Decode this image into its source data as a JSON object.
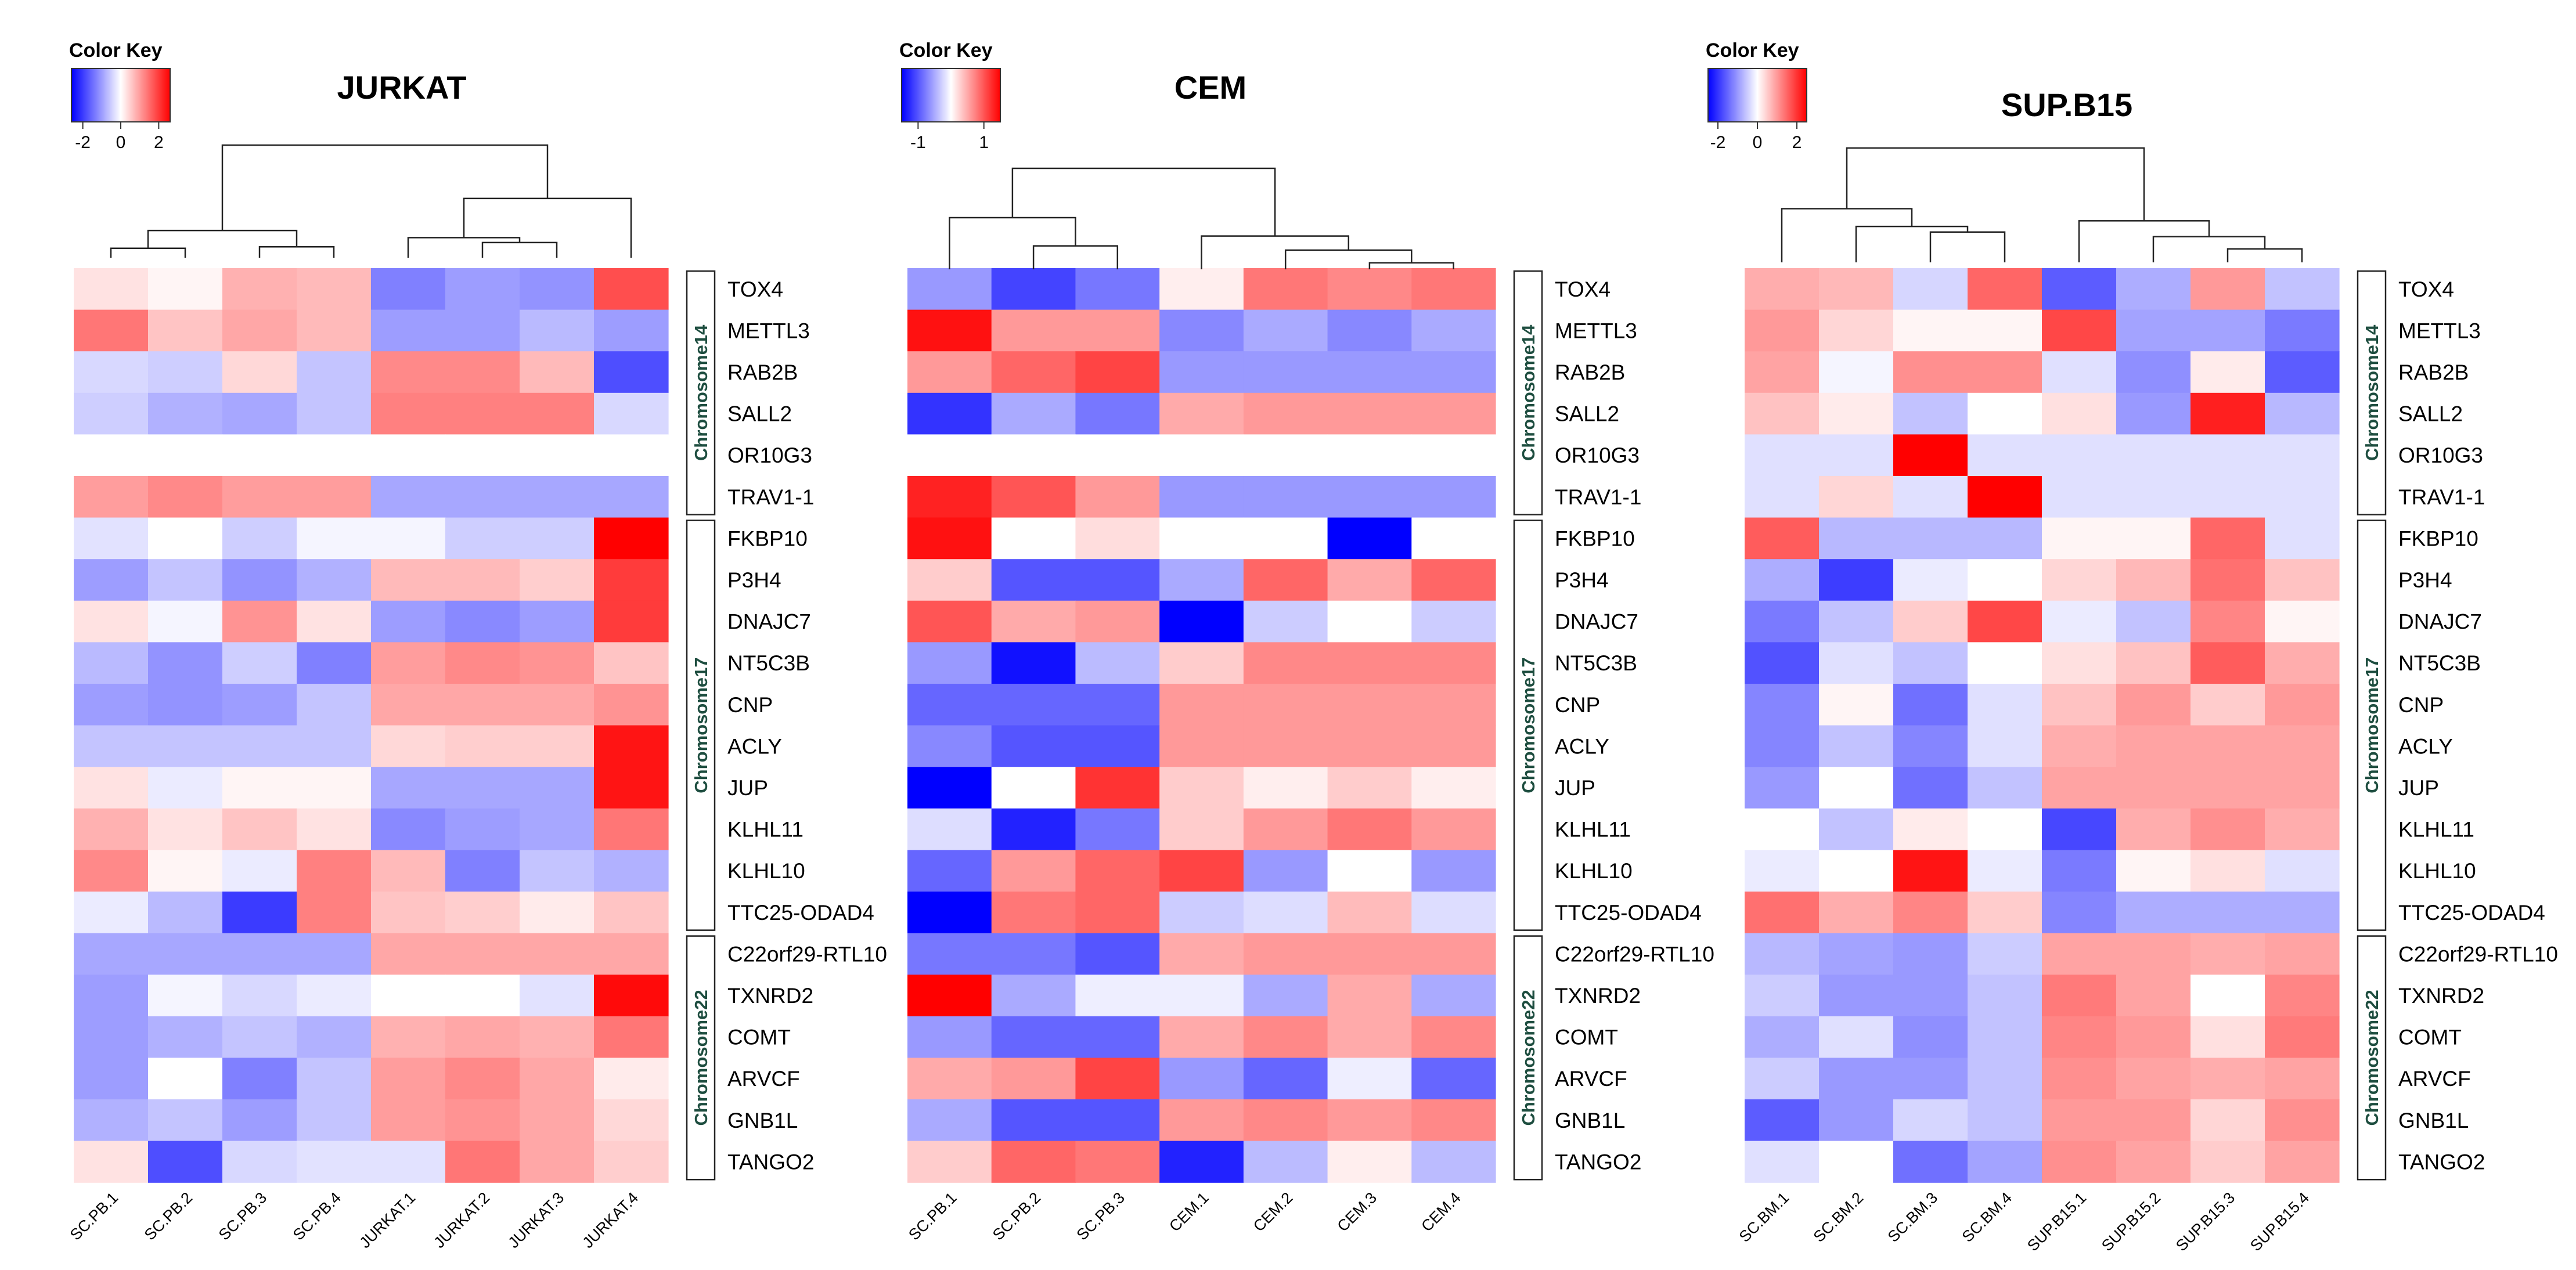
{
  "color_key_title": "Color Key",
  "colors": {
    "low": "#0000ff",
    "mid": "#ffffff",
    "high": "#ff0000",
    "missing": "#ffffff"
  },
  "genes": [
    "TOX4",
    "METTL3",
    "RAB2B",
    "SALL2",
    "OR10G3",
    "TRAV1-1",
    "FKBP10",
    "P3H4",
    "DNAJC7",
    "NT5C3B",
    "CNP",
    "ACLY",
    "JUP",
    "KLHL11",
    "KLHL10",
    "TTC25-ODAD4",
    "C22orf29-RTL10",
    "TXNRD2",
    "COMT",
    "ARVCF",
    "GNB1L",
    "TANGO2"
  ],
  "chromosome_groups": [
    {
      "label": "Chromosome14",
      "start": 0,
      "end": 5
    },
    {
      "label": "Chromosome17",
      "start": 6,
      "end": 15
    },
    {
      "label": "Chromosome22",
      "start": 16,
      "end": 21
    }
  ],
  "chart_data": [
    {
      "type": "heatmap",
      "title": "JURKAT",
      "color_key_ticks": [
        "-2",
        "0",
        "2"
      ],
      "color_key_values": [
        -2,
        0,
        2
      ],
      "vrange": [
        -2.6,
        2.6
      ],
      "columns": [
        "SC.PB.1",
        "SC.PB.2",
        "SC.PB.3",
        "SC.PB.4",
        "JURKAT.1",
        "JURKAT.2",
        "JURKAT.3",
        "JURKAT.4"
      ],
      "values": [
        [
          0.3,
          0.1,
          0.8,
          0.7,
          -1.3,
          -1.0,
          -1.1,
          1.8
        ],
        [
          1.4,
          0.6,
          0.9,
          0.7,
          -1.0,
          -1.0,
          -0.7,
          -1.0
        ],
        [
          -0.4,
          -0.5,
          0.4,
          -0.6,
          1.2,
          1.2,
          0.7,
          -1.8
        ],
        [
          -0.5,
          -0.8,
          -0.9,
          -0.6,
          1.3,
          1.3,
          1.3,
          -0.4
        ],
        [
          null,
          null,
          null,
          null,
          null,
          null,
          null,
          null
        ],
        [
          1.0,
          1.2,
          1.0,
          1.0,
          -0.9,
          -0.9,
          -0.9,
          -0.9
        ],
        [
          -0.3,
          0.0,
          -0.5,
          -0.1,
          -0.1,
          -0.5,
          -0.5,
          2.6
        ],
        [
          -1.0,
          -0.6,
          -1.1,
          -0.8,
          0.7,
          0.7,
          0.5,
          2.0
        ],
        [
          0.3,
          -0.1,
          1.1,
          0.3,
          -1.0,
          -1.2,
          -1.0,
          2.0
        ],
        [
          -0.7,
          -1.1,
          -0.5,
          -1.3,
          1.0,
          1.2,
          1.1,
          0.6
        ],
        [
          -1.0,
          -1.1,
          -1.0,
          -0.6,
          0.9,
          0.9,
          0.9,
          1.1
        ],
        [
          -0.6,
          -0.6,
          -0.6,
          -0.6,
          0.4,
          0.5,
          0.5,
          2.4
        ],
        [
          0.3,
          -0.2,
          0.1,
          0.1,
          -0.9,
          -0.9,
          -0.9,
          2.4
        ],
        [
          0.8,
          0.3,
          0.6,
          0.3,
          -1.2,
          -1.0,
          -0.9,
          1.4
        ],
        [
          1.2,
          0.1,
          -0.2,
          1.3,
          0.7,
          -1.3,
          -0.6,
          -0.8
        ],
        [
          -0.2,
          -0.7,
          -2.0,
          1.3,
          0.6,
          0.5,
          0.2,
          0.6
        ],
        [
          -0.9,
          -0.9,
          -0.9,
          -0.9,
          0.9,
          0.9,
          0.9,
          0.9
        ],
        [
          -1.0,
          -0.1,
          -0.4,
          -0.2,
          0.0,
          0.0,
          -0.3,
          2.5
        ],
        [
          -1.0,
          -0.8,
          -0.6,
          -0.8,
          0.8,
          0.9,
          0.8,
          1.4
        ],
        [
          -1.0,
          0.0,
          -1.3,
          -0.6,
          1.0,
          1.2,
          0.9,
          0.2
        ],
        [
          -0.8,
          -0.6,
          -1.0,
          -0.6,
          1.0,
          1.1,
          0.9,
          0.4
        ],
        [
          0.3,
          -1.8,
          -0.4,
          -0.3,
          -0.3,
          1.4,
          0.9,
          0.5
        ]
      ],
      "column_dendrogram": {
        "merges": [
          [
            -1,
            -2
          ],
          [
            -3,
            -4
          ],
          [
            1,
            2
          ],
          [
            -6,
            -7
          ],
          [
            -5,
            4
          ],
          [
            -8,
            5
          ],
          [
            3,
            6
          ]
        ],
        "heights": [
          0.1,
          0.12,
          0.35,
          0.18,
          0.25,
          0.8,
          1.55
        ]
      }
    },
    {
      "type": "heatmap",
      "title": "CEM",
      "color_key_ticks": [
        "-1",
        "1"
      ],
      "color_key_values": [
        -1,
        1
      ],
      "vrange": [
        -1.5,
        1.5
      ],
      "columns": [
        "SC.PB.1",
        "SC.PB.2",
        "SC.PB.3",
        "CEM.1",
        "CEM.2",
        "CEM.3",
        "CEM.4"
      ],
      "values": [
        [
          -0.6,
          -1.1,
          -0.8,
          0.1,
          0.8,
          0.7,
          0.8
        ],
        [
          1.4,
          0.6,
          0.6,
          -0.7,
          -0.5,
          -0.7,
          -0.5
        ],
        [
          0.6,
          0.9,
          1.1,
          -0.6,
          -0.6,
          -0.6,
          -0.6
        ],
        [
          -1.2,
          -0.5,
          -0.8,
          0.5,
          0.6,
          0.6,
          0.6
        ],
        [
          null,
          null,
          null,
          null,
          null,
          null,
          null
        ],
        [
          1.3,
          1.0,
          0.6,
          -0.6,
          -0.6,
          -0.6,
          -0.6
        ],
        [
          1.4,
          0.0,
          0.2,
          0.0,
          0.0,
          -1.5,
          0.0
        ],
        [
          0.3,
          -1.0,
          -1.0,
          -0.5,
          0.9,
          0.5,
          0.9
        ],
        [
          1.0,
          0.5,
          0.6,
          -1.5,
          -0.3,
          0.0,
          -0.3
        ],
        [
          -0.6,
          -1.4,
          -0.4,
          0.3,
          0.7,
          0.7,
          0.7
        ],
        [
          -0.9,
          -0.9,
          -0.9,
          0.6,
          0.6,
          0.6,
          0.6
        ],
        [
          -0.7,
          -1.0,
          -1.0,
          0.6,
          0.6,
          0.6,
          0.6
        ],
        [
          -1.5,
          0.0,
          1.2,
          0.3,
          0.1,
          0.3,
          0.1
        ],
        [
          -0.2,
          -1.3,
          -0.8,
          0.3,
          0.6,
          0.8,
          0.6
        ],
        [
          -0.9,
          0.6,
          0.9,
          1.1,
          -0.6,
          0.0,
          -0.6
        ],
        [
          -1.5,
          0.8,
          0.9,
          -0.3,
          -0.2,
          0.4,
          -0.2
        ],
        [
          -0.8,
          -0.8,
          -1.0,
          0.5,
          0.6,
          0.6,
          0.6
        ],
        [
          1.6,
          -0.5,
          -0.1,
          -0.1,
          -0.5,
          0.5,
          -0.5
        ],
        [
          -0.6,
          -0.9,
          -0.9,
          0.5,
          0.7,
          0.5,
          0.7
        ],
        [
          0.5,
          0.6,
          1.1,
          -0.6,
          -0.9,
          -0.1,
          -0.9
        ],
        [
          -0.5,
          -1.0,
          -1.0,
          0.6,
          0.7,
          0.6,
          0.7
        ],
        [
          0.3,
          0.9,
          0.8,
          -1.3,
          -0.4,
          0.1,
          -0.4
        ]
      ],
      "column_dendrogram": {
        "merges": [
          [
            -2,
            -3
          ],
          [
            -1,
            1
          ],
          [
            -6,
            -7
          ],
          [
            -5,
            3
          ],
          [
            -4,
            4
          ],
          [
            2,
            5
          ]
        ],
        "heights": [
          0.15,
          0.35,
          0.03,
          0.12,
          0.22,
          0.7
        ]
      }
    },
    {
      "type": "heatmap",
      "title": "SUP.B15",
      "color_key_ticks": [
        "-2",
        "0",
        "2"
      ],
      "color_key_values": [
        -2,
        0,
        2
      ],
      "vrange": [
        -2.5,
        2.5
      ],
      "columns": [
        "SC.BM.1",
        "SC.BM.2",
        "SC.BM.3",
        "SC.BM.4",
        "SUP.B15.1",
        "SUP.B15.2",
        "SUP.B15.3",
        "SUP.B15.4"
      ],
      "values": [
        [
          0.8,
          0.7,
          -0.4,
          1.5,
          -1.6,
          -0.8,
          1.0,
          -0.6
        ],
        [
          1.0,
          0.4,
          0.1,
          0.1,
          1.8,
          -0.9,
          -0.9,
          -1.3
        ],
        [
          0.9,
          -0.1,
          1.1,
          1.1,
          -0.3,
          -1.1,
          0.2,
          -1.6
        ],
        [
          0.6,
          0.2,
          -0.6,
          0.0,
          0.3,
          -1.0,
          2.2,
          -0.7
        ],
        [
          -0.3,
          -0.3,
          2.5,
          -0.3,
          -0.3,
          -0.3,
          -0.3,
          -0.3
        ],
        [
          -0.3,
          0.4,
          -0.3,
          2.5,
          -0.3,
          -0.3,
          -0.3,
          -0.3
        ],
        [
          1.6,
          -0.7,
          -0.7,
          -0.7,
          0.1,
          0.1,
          1.5,
          -0.3
        ],
        [
          -0.8,
          -1.9,
          -0.2,
          0.0,
          0.4,
          0.7,
          1.4,
          0.6
        ],
        [
          -1.3,
          -0.6,
          0.5,
          1.8,
          -0.2,
          -0.6,
          1.2,
          0.1
        ],
        [
          -1.7,
          -0.3,
          -0.6,
          0.0,
          0.3,
          0.6,
          1.6,
          0.8
        ],
        [
          -1.2,
          0.1,
          -1.4,
          -0.3,
          0.6,
          1.0,
          0.5,
          1.0
        ],
        [
          -1.2,
          -0.6,
          -1.2,
          -0.3,
          0.8,
          0.9,
          0.9,
          0.9
        ],
        [
          -1.0,
          0.0,
          -1.4,
          -0.6,
          0.9,
          0.9,
          0.9,
          0.9
        ],
        [
          0.0,
          -0.6,
          0.2,
          0.0,
          -1.8,
          0.8,
          1.1,
          0.8
        ],
        [
          -0.2,
          0.0,
          2.3,
          -0.2,
          -1.3,
          0.1,
          0.3,
          -0.3
        ],
        [
          1.4,
          0.8,
          1.2,
          0.5,
          -1.2,
          -0.8,
          -0.8,
          -0.8
        ],
        [
          -0.7,
          -0.9,
          -1.0,
          -0.5,
          0.9,
          0.9,
          0.8,
          0.9
        ],
        [
          -0.5,
          -1.0,
          -1.0,
          -0.6,
          1.3,
          0.9,
          0.0,
          1.2
        ],
        [
          -0.8,
          -0.3,
          -1.1,
          -0.6,
          1.2,
          1.0,
          0.3,
          1.3
        ],
        [
          -0.5,
          -1.0,
          -1.0,
          -0.6,
          1.1,
          0.9,
          0.8,
          0.9
        ],
        [
          -1.6,
          -1.0,
          -0.4,
          -0.6,
          1.0,
          1.0,
          0.4,
          1.1
        ],
        [
          -0.3,
          0.0,
          -1.4,
          -0.9,
          1.1,
          0.9,
          0.5,
          0.9
        ]
      ],
      "column_dendrogram": {
        "merges": [
          [
            -3,
            -4
          ],
          [
            -2,
            1
          ],
          [
            -1,
            2
          ],
          [
            -7,
            -8
          ],
          [
            -6,
            4
          ],
          [
            -5,
            5
          ],
          [
            3,
            6
          ]
        ],
        "heights": [
          0.3,
          0.36,
          0.55,
          0.12,
          0.25,
          0.42,
          1.2
        ]
      }
    }
  ]
}
